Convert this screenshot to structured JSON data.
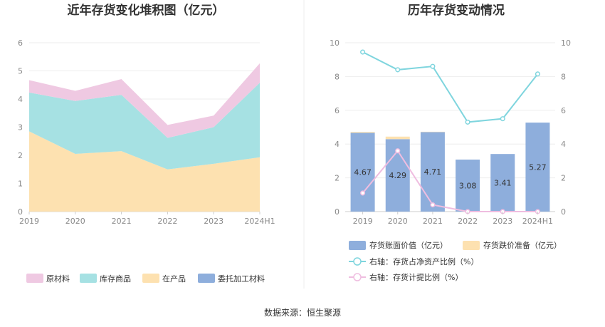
{
  "source_text": "数据来源：恒生聚源",
  "chart_data": [
    {
      "type": "area",
      "stacked": true,
      "title": "近年存货变化堆积图（亿元）",
      "categories": [
        "2019",
        "2020",
        "2021",
        "2022",
        "2023",
        "2024H1"
      ],
      "ylim": [
        0,
        6
      ],
      "yticks": [
        0,
        1,
        2,
        3,
        4,
        5,
        6
      ],
      "grid": true,
      "legend_position": "bottom",
      "series": [
        {
          "name": "委托加工材料",
          "color": "#8eaedc",
          "values": [
            0,
            0,
            0,
            0,
            0,
            0
          ]
        },
        {
          "name": "在产品",
          "color": "#fde1b0",
          "values": [
            2.85,
            2.05,
            2.15,
            1.5,
            1.7,
            1.93
          ]
        },
        {
          "name": "库存商品",
          "color": "#a6e1e3",
          "values": [
            1.38,
            1.88,
            2.0,
            1.12,
            1.3,
            2.65
          ]
        },
        {
          "name": "原材料",
          "color": "#efc9e2",
          "values": [
            0.44,
            0.36,
            0.56,
            0.46,
            0.41,
            0.69
          ]
        }
      ],
      "legend_order": [
        "原材料",
        "库存商品",
        "在产品",
        "委托加工材料"
      ]
    },
    {
      "type": "bar",
      "title": "历年存货变动情况",
      "categories": [
        "2019",
        "2020",
        "2021",
        "2022",
        "2023",
        "2024H1"
      ],
      "ylim": [
        0,
        10
      ],
      "yticks": [
        0,
        2,
        4,
        6,
        8,
        10
      ],
      "y2lim": [
        0,
        10
      ],
      "y2ticks": [
        0,
        2,
        4,
        6,
        8,
        10
      ],
      "grid": true,
      "legend_position": "bottom",
      "bars": [
        {
          "name": "存货账面价值（亿元）",
          "color": "#8eaedc",
          "values": [
            4.67,
            4.29,
            4.71,
            3.08,
            3.41,
            5.27
          ],
          "labels": [
            "4.67",
            "4.29",
            "4.71",
            "3.08",
            "3.41",
            "5.27"
          ]
        },
        {
          "name": "存货跌价准备（亿元）",
          "color": "#fde1b0",
          "values": [
            0.05,
            0.15,
            0.02,
            0,
            0,
            0
          ]
        }
      ],
      "lines": [
        {
          "name": "右轴：存货占净资产比例（%）",
          "color": "#7fd5de",
          "axis": "right",
          "values": [
            9.45,
            8.4,
            8.6,
            5.3,
            5.5,
            8.15
          ]
        },
        {
          "name": "右轴：存货计提比例（%）",
          "color": "#efbde0",
          "axis": "right",
          "values": [
            1.1,
            3.6,
            0.4,
            0.0,
            0.0,
            0.0
          ]
        }
      ]
    }
  ]
}
